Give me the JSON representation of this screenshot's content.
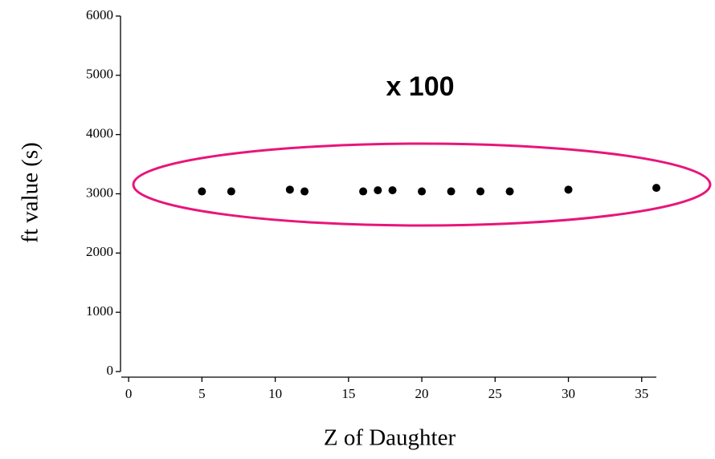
{
  "chart_data": {
    "type": "scatter",
    "xlabel": "Z of Daughter",
    "ylabel": "ft value (s)",
    "annotation": "x 100",
    "x": [
      5,
      7,
      11,
      12,
      16,
      17,
      18,
      20,
      22,
      24,
      26,
      30,
      36
    ],
    "values": [
      3040,
      3040,
      3070,
      3040,
      3040,
      3060,
      3060,
      3040,
      3040,
      3040,
      3040,
      3070,
      3100
    ],
    "color": "#000000",
    "xlim": [
      -0.5,
      36
    ],
    "xticks": [
      0,
      5,
      10,
      15,
      20,
      25,
      30,
      35
    ],
    "ylim": [
      0,
      6000
    ],
    "yticks": [
      0,
      1000,
      2000,
      3000,
      4000,
      5000,
      6000
    ]
  }
}
